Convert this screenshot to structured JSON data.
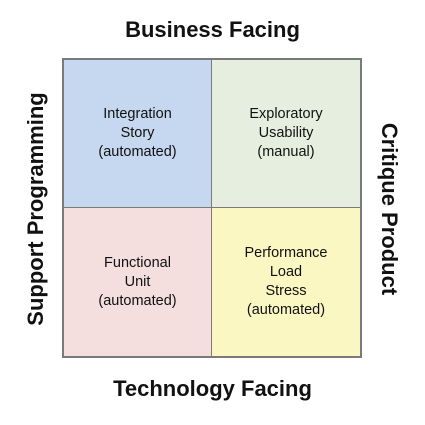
{
  "axes": {
    "top": "Business Facing",
    "bottom": "Technology Facing",
    "left": "Support Programming",
    "right": "Critique Product"
  },
  "quadrants": [
    {
      "id": "top-left",
      "color": "#c5d8ef",
      "lines": [
        "Integration",
        "Story",
        "(automated)"
      ]
    },
    {
      "id": "top-right",
      "color": "#e5eedf",
      "lines": [
        "Exploratory",
        "Usability",
        "(manual)"
      ]
    },
    {
      "id": "bottom-left",
      "color": "#f4dede",
      "lines": [
        "Functional",
        "Unit",
        "(automated)"
      ]
    },
    {
      "id": "bottom-right",
      "color": "#fbf7c3",
      "lines": [
        "Performance",
        "Load",
        "Stress",
        "(automated)"
      ]
    }
  ],
  "colors": {
    "border": "#7a7a7a",
    "text": "#111111"
  }
}
